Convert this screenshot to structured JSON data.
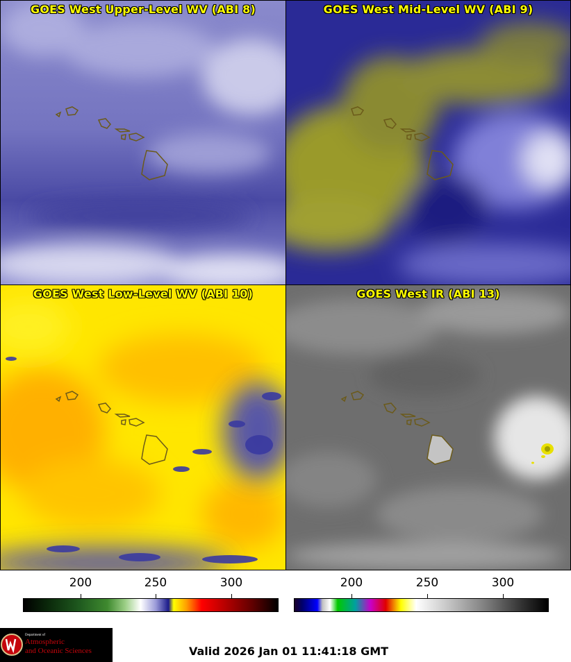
{
  "panels": [
    {
      "title": "GOES West Upper-Level WV (ABI 8)"
    },
    {
      "title": "GOES West Mid-Level WV (ABI 9)"
    },
    {
      "title": "GOES West Low-Level WV (ABI 10)"
    },
    {
      "title": "GOES West IR (ABI 13)"
    }
  ],
  "colorbar_left": {
    "ticks": [
      "200",
      "250",
      "300"
    ]
  },
  "colorbar_right": {
    "ticks": [
      "200",
      "250",
      "300"
    ]
  },
  "logo": {
    "line1": "Department of",
    "line2": "Atmospheric",
    "line3": "and Oceanic Sciences"
  },
  "valid_time": "Valid 2026 Jan 01 11:41:18 GMT",
  "colors": {
    "title_text": "#ffff00",
    "coastline": "#6b5a1a",
    "wv8_base": "#5a5ab0",
    "wv9_base": "#1a1a8a",
    "wv10_base": "#ffe600",
    "ir_base": "#6e6e6e"
  }
}
